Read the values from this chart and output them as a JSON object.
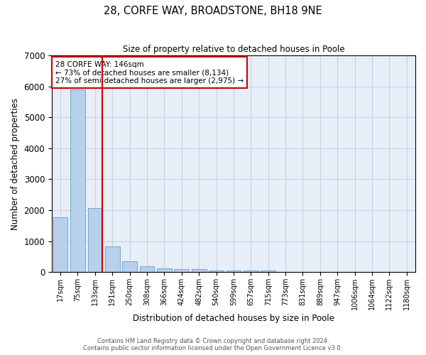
{
  "title": "28, CORFE WAY, BROADSTONE, BH18 9NE",
  "subtitle": "Size of property relative to detached houses in Poole",
  "xlabel": "Distribution of detached houses by size in Poole",
  "ylabel": "Number of detached properties",
  "categories": [
    "17sqm",
    "75sqm",
    "133sqm",
    "191sqm",
    "250sqm",
    "308sqm",
    "366sqm",
    "424sqm",
    "482sqm",
    "540sqm",
    "599sqm",
    "657sqm",
    "715sqm",
    "773sqm",
    "831sqm",
    "889sqm",
    "947sqm",
    "1006sqm",
    "1064sqm",
    "1122sqm",
    "1180sqm"
  ],
  "values": [
    1780,
    5900,
    2060,
    840,
    350,
    200,
    130,
    110,
    90,
    60,
    60,
    60,
    60,
    0,
    0,
    0,
    0,
    0,
    0,
    0,
    0
  ],
  "bar_color": "#b8d0ea",
  "bar_edge_color": "#6aaad4",
  "vline_color": "#cc0000",
  "vline_x_index": 2,
  "annotation_text": "28 CORFE WAY: 146sqm\n← 73% of detached houses are smaller (8,134)\n27% of semi-detached houses are larger (2,975) →",
  "annotation_box_color": "white",
  "annotation_box_edge_color": "#cc0000",
  "ylim": [
    0,
    7000
  ],
  "yticks": [
    0,
    1000,
    2000,
    3000,
    4000,
    5000,
    6000,
    7000
  ],
  "background_color": "#e8eef8",
  "grid_color": "#c8d0e0",
  "footnote1": "Contains HM Land Registry data © Crown copyright and database right 2024.",
  "footnote2": "Contains public sector information licensed under the Open Government Licence v3.0."
}
